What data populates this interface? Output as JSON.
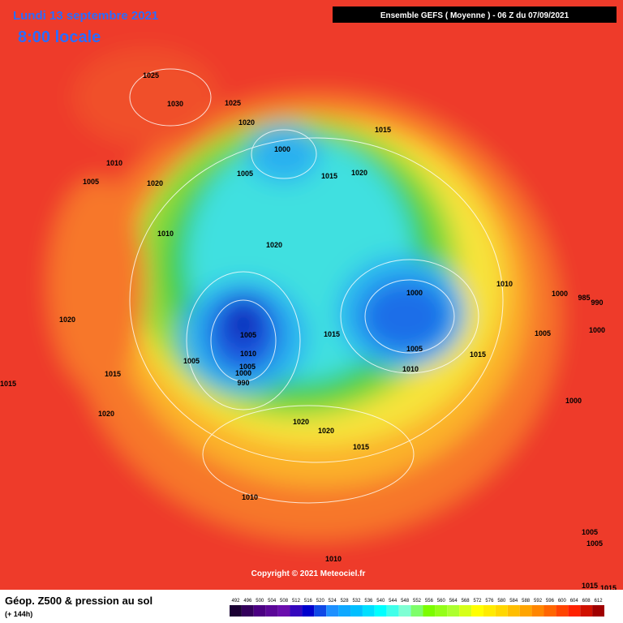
{
  "header": {
    "date": "Lundi 13 septembre 2021",
    "time": "8:00 locale",
    "model": "Ensemble GEFS  ( Moyenne )  -  06 Z du 07/09/2021"
  },
  "map": {
    "isobar_labels": [
      1025,
      1030,
      1025,
      1020,
      1000,
      1015,
      1010,
      1005,
      1020,
      1005,
      1015,
      1020,
      1010,
      1020,
      1010,
      1000,
      1000,
      985,
      990,
      1020,
      1005,
      1015,
      1000,
      1005,
      1010,
      1005,
      1015,
      1005,
      1005,
      1000,
      1010,
      1015,
      990,
      1015,
      1000,
      1020,
      1020,
      1020,
      1015,
      1010,
      1005,
      1005,
      1010,
      1015,
      1015
    ],
    "copyright": "Copyright © 2021 Meteociel.fr"
  },
  "footer": {
    "title": "Géop. Z500 & pression au sol",
    "lead": "(+ 144h)",
    "scale_labels": [
      492,
      496,
      500,
      504,
      508,
      512,
      516,
      520,
      524,
      528,
      532,
      536,
      540,
      544,
      548,
      552,
      556,
      560,
      564,
      568,
      572,
      576,
      580,
      584,
      588,
      592,
      596,
      600,
      604,
      608,
      612
    ]
  }
}
